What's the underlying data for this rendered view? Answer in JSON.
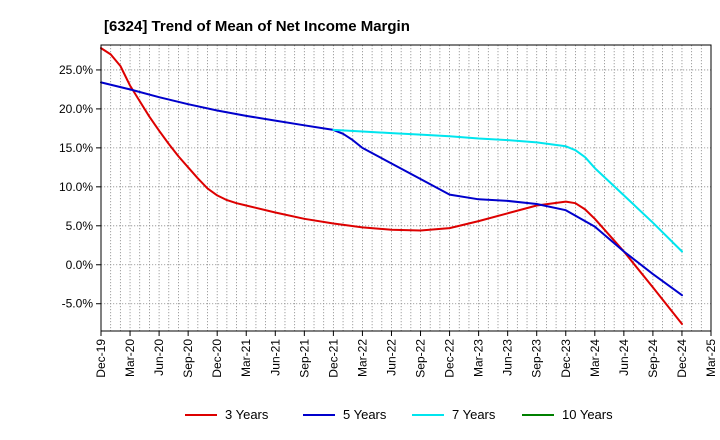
{
  "chart_data": {
    "type": "line",
    "title": "[6324]  Trend of Mean of Net Income Margin",
    "xlabel": "",
    "ylabel": "",
    "x_ticks": [
      "Dec-19",
      "Mar-20",
      "Jun-20",
      "Sep-20",
      "Dec-20",
      "Mar-21",
      "Jun-21",
      "Sep-21",
      "Dec-21",
      "Mar-22",
      "Jun-22",
      "Sep-22",
      "Dec-22",
      "Mar-23",
      "Jun-23",
      "Sep-23",
      "Dec-23",
      "Mar-24",
      "Jun-24",
      "Sep-24",
      "Dec-24",
      "Mar-25"
    ],
    "y_ticks": [
      "25.0%",
      "20.0%",
      "15.0%",
      "10.0%",
      "5.0%",
      "0.0%",
      "-5.0%"
    ],
    "y_tick_values": [
      25,
      20,
      15,
      10,
      5,
      0,
      -5
    ],
    "ylim": [
      -8.5,
      28.2
    ],
    "x_range": [
      "Dec-19",
      "Mar-25"
    ],
    "grid": true,
    "legend_position": "bottom",
    "series": [
      {
        "name": "3 Years",
        "color": "#dd0000",
        "x": [
          "Dec-19",
          "Jan-20",
          "Feb-20",
          "Mar-20",
          "Apr-20",
          "May-20",
          "Jun-20",
          "Jul-20",
          "Aug-20",
          "Sep-20",
          "Oct-20",
          "Nov-20",
          "Dec-20",
          "Jan-21",
          "Feb-21",
          "Mar-21",
          "Jun-21",
          "Sep-21",
          "Dec-21",
          "Mar-22",
          "Jun-22",
          "Sep-22",
          "Dec-22",
          "Mar-23",
          "Jun-23",
          "Sep-23",
          "Dec-23",
          "Jan-24",
          "Feb-24",
          "Mar-24",
          "Apr-24",
          "May-24",
          "Jun-24",
          "Sep-24",
          "Dec-24"
        ],
        "values": [
          27.8,
          27.0,
          25.5,
          23.0,
          21.0,
          19.0,
          17.2,
          15.5,
          13.9,
          12.5,
          11.1,
          9.8,
          8.9,
          8.3,
          7.9,
          7.6,
          6.7,
          5.9,
          5.3,
          4.8,
          4.5,
          4.4,
          4.7,
          5.6,
          6.6,
          7.6,
          8.1,
          7.9,
          7.1,
          5.9,
          4.5,
          3.1,
          1.7,
          -2.9,
          -7.6
        ]
      },
      {
        "name": "5 Years",
        "color": "#0000cc",
        "x": [
          "Dec-19",
          "Mar-20",
          "Jun-20",
          "Sep-20",
          "Dec-20",
          "Mar-21",
          "Jun-21",
          "Sep-21",
          "Nov-21",
          "Dec-21",
          "Jan-22",
          "Feb-22",
          "Mar-22",
          "Jun-22",
          "Sep-22",
          "Dec-22",
          "Mar-23",
          "Jun-23",
          "Sep-23",
          "Dec-23",
          "Mar-24",
          "Jun-24",
          "Sep-24",
          "Dec-24"
        ],
        "values": [
          23.4,
          22.5,
          21.5,
          20.6,
          19.8,
          19.1,
          18.5,
          17.9,
          17.5,
          17.3,
          16.8,
          16.0,
          15.0,
          13.0,
          11.0,
          9.0,
          8.4,
          8.2,
          7.8,
          7.0,
          4.9,
          1.7,
          -1.2,
          -3.9
        ]
      },
      {
        "name": "7 Years",
        "color": "#00e5ee",
        "x": [
          "Dec-21",
          "Mar-22",
          "Jun-22",
          "Sep-22",
          "Dec-22",
          "Mar-23",
          "Jun-23",
          "Sep-23",
          "Dec-23",
          "Jan-24",
          "Feb-24",
          "Mar-24",
          "Jun-24",
          "Sep-24",
          "Dec-24"
        ],
        "values": [
          17.3,
          17.1,
          16.9,
          16.7,
          16.5,
          16.2,
          16.0,
          15.7,
          15.2,
          14.7,
          13.8,
          12.4,
          8.9,
          5.4,
          1.7
        ]
      },
      {
        "name": "10 Years",
        "color": "#008000",
        "x": [],
        "values": []
      }
    ]
  }
}
